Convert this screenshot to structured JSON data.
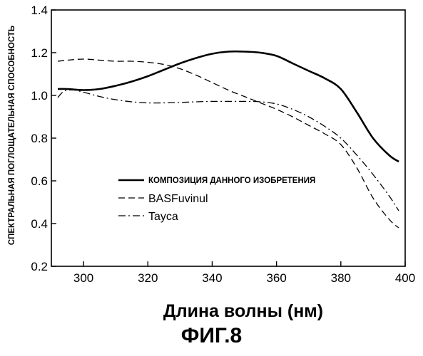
{
  "chart_data": {
    "type": "line",
    "xlabel": "Длина волны (нм)",
    "ylabel": "СПЕКТРАЛЬНАЯ ПОГЛОЩАТЕЛЬНАЯ СПОСОБНОСТЬ",
    "xlim": [
      290,
      400
    ],
    "ylim": [
      0.2,
      1.4
    ],
    "xticks": [
      300,
      320,
      340,
      360,
      380,
      400
    ],
    "yticks": [
      0.2,
      0.4,
      0.6,
      0.8,
      1.0,
      1.2,
      1.4
    ],
    "xtick_labels": [
      "300",
      "320",
      "340",
      "360",
      "380",
      "400"
    ],
    "ytick_labels": [
      "0.2",
      "0.4",
      "0.6",
      "0.8",
      "1.0",
      "1.2",
      "1.4"
    ],
    "grid": false,
    "legend_position": "center-left",
    "series": [
      {
        "name": "КОМПОЗИЦИЯ ДАННОГО ИЗОБРЕТЕНИЯ",
        "style": "solid",
        "x": [
          292,
          295,
          300,
          305,
          310,
          315,
          320,
          325,
          330,
          335,
          340,
          345,
          350,
          355,
          360,
          365,
          370,
          375,
          380,
          385,
          390,
          395,
          398
        ],
        "y": [
          1.03,
          1.03,
          1.025,
          1.03,
          1.045,
          1.065,
          1.09,
          1.12,
          1.15,
          1.175,
          1.195,
          1.205,
          1.205,
          1.2,
          1.185,
          1.15,
          1.115,
          1.08,
          1.03,
          0.92,
          0.8,
          0.72,
          0.69
        ]
      },
      {
        "name": "BASFuvinul",
        "style": "dashed",
        "x": [
          292,
          295,
          300,
          305,
          310,
          315,
          320,
          325,
          330,
          335,
          340,
          345,
          350,
          355,
          360,
          365,
          370,
          375,
          380,
          385,
          390,
          395,
          398
        ],
        "y": [
          1.16,
          1.165,
          1.17,
          1.165,
          1.16,
          1.16,
          1.155,
          1.145,
          1.125,
          1.095,
          1.06,
          1.025,
          0.995,
          0.965,
          0.935,
          0.9,
          0.86,
          0.82,
          0.77,
          0.66,
          0.52,
          0.42,
          0.38
        ]
      },
      {
        "name": "Tayca",
        "style": "dashdot",
        "x": [
          292,
          294,
          297,
          300,
          305,
          310,
          315,
          320,
          325,
          330,
          335,
          340,
          345,
          350,
          355,
          360,
          365,
          370,
          375,
          380,
          385,
          390,
          395,
          398
        ],
        "y": [
          0.99,
          1.02,
          1.025,
          1.015,
          0.995,
          0.98,
          0.97,
          0.965,
          0.965,
          0.967,
          0.97,
          0.972,
          0.972,
          0.972,
          0.97,
          0.96,
          0.935,
          0.9,
          0.855,
          0.8,
          0.72,
          0.63,
          0.53,
          0.46
        ]
      }
    ]
  },
  "caption": "ФИГ.8"
}
